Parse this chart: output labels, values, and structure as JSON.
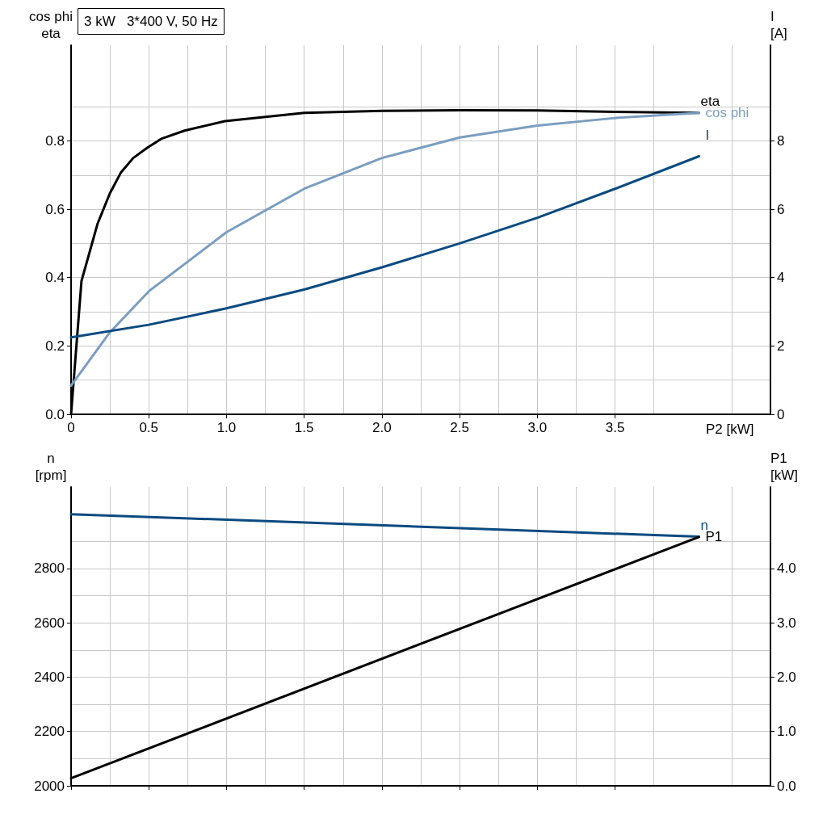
{
  "chart_data": [
    {
      "type": "line",
      "title": "3 kW   3*400 V, 50 Hz",
      "xlabel": "P2 [kW]",
      "ylabel": "cos phi\neta",
      "y2label": "I\n[A]",
      "xlim": [
        0,
        4.5
      ],
      "xticks": [
        {
          "value": 0,
          "label": "0"
        },
        0.5,
        {
          "value": 1,
          "label": "1.0"
        },
        1.5,
        {
          "value": 2,
          "label": "2.0"
        },
        2.5,
        {
          "value": 3,
          "label": "3.0"
        },
        3.5
      ],
      "ylim": [
        0,
        1.08
      ],
      "yticks": [
        {
          "value": 0,
          "label": "0.0"
        },
        0.2,
        0.4,
        0.6,
        0.8
      ],
      "y2lim": [
        0,
        10.8
      ],
      "y2ticks": [
        0,
        2,
        4,
        6,
        8
      ],
      "grid": true,
      "legend": false,
      "marker": "none",
      "line_style": "solid",
      "series": [
        {
          "name": "eta",
          "color": "#000000",
          "x": [
            0,
            0.067,
            0.17,
            0.25,
            0.32,
            0.4,
            0.49,
            0.58,
            0.73,
            0.99,
            1.5,
            2.0,
            2.5,
            3.0,
            3.5,
            4.04
          ],
          "values": [
            0,
            0.39,
            0.557,
            0.647,
            0.707,
            0.75,
            0.78,
            0.806,
            0.83,
            0.858,
            0.882,
            0.888,
            0.89,
            0.889,
            0.885,
            0.882
          ]
        },
        {
          "name": "cos phi",
          "color": "#7a9ec0",
          "x": [
            0,
            0.25,
            0.5,
            1.0,
            1.5,
            2.0,
            2.5,
            3.0,
            3.5,
            4.04
          ],
          "values": [
            0.084,
            0.24,
            0.36,
            0.533,
            0.66,
            0.75,
            0.81,
            0.845,
            0.867,
            0.882
          ]
        },
        {
          "name": "I",
          "color": "#0a4a80",
          "axis": "y2",
          "x": [
            0,
            0.5,
            1.0,
            1.5,
            2.0,
            2.5,
            3.0,
            3.5,
            4.04
          ],
          "values": [
            2.25,
            2.62,
            3.1,
            3.65,
            4.3,
            5.0,
            5.75,
            6.6,
            7.55
          ]
        }
      ]
    },
    {
      "type": "line",
      "ylabel": "n\n[rpm]",
      "y2label": "P1\n[kW]",
      "xlim": [
        0,
        4.5
      ],
      "xticks": [
        0,
        0.5,
        1,
        1.5,
        2,
        2.5,
        3,
        3.5
      ],
      "ylim": [
        2000,
        3100
      ],
      "yticks": [
        2000,
        2200,
        2400,
        2600,
        2800
      ],
      "y2lim": [
        0,
        5.5
      ],
      "y2ticks": [
        {
          "value": 0,
          "label": "0.0"
        },
        {
          "value": 1,
          "label": "1.0"
        },
        {
          "value": 2,
          "label": "2.0"
        },
        {
          "value": 3,
          "label": "3.0"
        },
        {
          "value": 4,
          "label": "4.0"
        }
      ],
      "grid": true,
      "legend": false,
      "tick_labels": "y",
      "marker": "none",
      "line_style": "solid",
      "series": [
        {
          "name": "n",
          "color": "#0a4a80",
          "x": [
            0,
            4.04
          ],
          "values": [
            3000,
            2917
          ]
        },
        {
          "name": "P1",
          "color": "#000000",
          "axis": "y2",
          "x": [
            0,
            4.04
          ],
          "values": [
            0.14,
            4.58
          ]
        }
      ]
    }
  ]
}
